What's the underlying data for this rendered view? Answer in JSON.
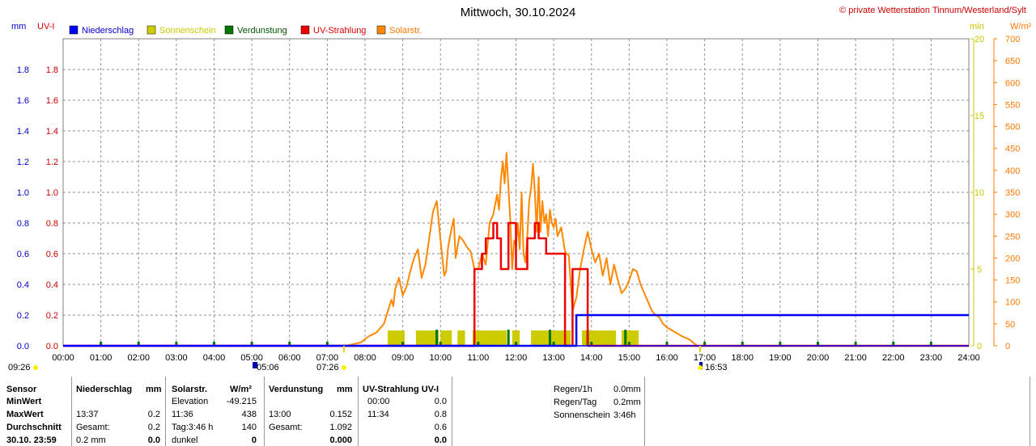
{
  "title": "Mittwoch, 30.10.2024",
  "copyright": "© private Wetterstation Tinnum/Westerland/Sylt",
  "units": {
    "mm": "mm",
    "uvi": "UV-I",
    "min": "min",
    "wm2": "W/m²"
  },
  "legend": [
    {
      "label": "Niederschlag",
      "color": "#0000ff",
      "text_color": "#0000cc"
    },
    {
      "label": "Sonnenschein",
      "color": "#cccc00",
      "text_color": "#c8c800"
    },
    {
      "label": "Verdunstung",
      "color": "#007700",
      "text_color": "#005500"
    },
    {
      "label": "UV-Strahlung",
      "color": "#ee0000",
      "text_color": "#dd0000"
    },
    {
      "label": "Solarstr.",
      "color": "#ff8800",
      "text_color": "#ff7700"
    }
  ],
  "sun": {
    "sunrise": "07:26",
    "sunset": "16:53",
    "dawn": "09:26",
    "dusk": "05:06"
  },
  "chart_data": {
    "type": "line",
    "x_range": [
      "00:00",
      "24:00"
    ],
    "x_ticks": [
      "00:00",
      "01:00",
      "02:00",
      "03:00",
      "04:00",
      "05:00",
      "06:00",
      "07:00",
      "08:00",
      "09:00",
      "10:00",
      "11:00",
      "12:00",
      "13:00",
      "14:00",
      "15:00",
      "16:00",
      "17:00",
      "18:00",
      "19:00",
      "20:00",
      "21:00",
      "22:00",
      "23:00",
      "24:00"
    ],
    "axes": {
      "mm": {
        "range": [
          0,
          2.0
        ],
        "ticks": [
          "0.0",
          "0.2",
          "0.4",
          "0.6",
          "0.8",
          "1.0",
          "1.2",
          "1.4",
          "1.6",
          "1.8"
        ],
        "color": "#0000cc"
      },
      "uvi": {
        "range": [
          0,
          2.0
        ],
        "ticks": [
          "0.0",
          "0.2",
          "0.4",
          "0.6",
          "0.8",
          "1.0",
          "1.2",
          "1.4",
          "1.6",
          "1.8"
        ],
        "color": "#cc0000"
      },
      "min": {
        "range": [
          0,
          20
        ],
        "ticks": [
          "0",
          "5",
          "10",
          "15",
          "20"
        ],
        "color": "#c8c800"
      },
      "wm2": {
        "range": [
          0,
          700
        ],
        "ticks": [
          "0",
          "50",
          "100",
          "150",
          "200",
          "250",
          "300",
          "350",
          "400",
          "450",
          "500",
          "550",
          "600",
          "650",
          "700"
        ],
        "color": "#ff7700"
      }
    },
    "series": [
      {
        "name": "Solarstr.",
        "axis": "wm2",
        "color": "#ff8800",
        "x": [
          7.5,
          7.9,
          8.1,
          8.3,
          8.5,
          8.6,
          8.7,
          8.75,
          8.8,
          8.9,
          9.0,
          9.1,
          9.2,
          9.3,
          9.4,
          9.5,
          9.6,
          9.7,
          9.8,
          9.9,
          10.0,
          10.1,
          10.15,
          10.2,
          10.3,
          10.35,
          10.4,
          10.5,
          10.6,
          10.7,
          10.8,
          10.9,
          11.0,
          11.1,
          11.2,
          11.3,
          11.4,
          11.5,
          11.55,
          11.6,
          11.65,
          11.7,
          11.75,
          11.8,
          11.85,
          11.9,
          11.95,
          12.0,
          12.05,
          12.1,
          12.15,
          12.2,
          12.25,
          12.3,
          12.35,
          12.4,
          12.45,
          12.5,
          12.55,
          12.6,
          12.65,
          12.7,
          12.75,
          12.8,
          12.85,
          12.9,
          12.95,
          13.0,
          13.05,
          13.1,
          13.15,
          13.2,
          13.3,
          13.4,
          13.5,
          13.6,
          13.7,
          13.8,
          13.9,
          14.0,
          14.1,
          14.2,
          14.3,
          14.4,
          14.5,
          14.6,
          14.7,
          14.8,
          14.9,
          15.0,
          15.1,
          15.2,
          15.3,
          15.4,
          15.5,
          15.6,
          15.7,
          15.8,
          15.9,
          16.0,
          16.2,
          16.4,
          16.6,
          16.8
        ],
        "values": [
          0,
          8,
          22,
          30,
          50,
          78,
          105,
          90,
          130,
          155,
          115,
          135,
          170,
          200,
          220,
          155,
          185,
          245,
          305,
          330,
          240,
          160,
          170,
          225,
          270,
          290,
          200,
          250,
          240,
          225,
          215,
          175,
          175,
          210,
          185,
          280,
          300,
          345,
          310,
          380,
          420,
          370,
          440,
          360,
          285,
          175,
          240,
          230,
          280,
          220,
          350,
          210,
          190,
          250,
          330,
          360,
          415,
          350,
          260,
          385,
          260,
          330,
          280,
          300,
          250,
          310,
          280,
          270,
          290,
          250,
          260,
          270,
          215,
          205,
          80,
          110,
          175,
          220,
          260,
          220,
          190,
          210,
          160,
          200,
          140,
          185,
          150,
          120,
          130,
          150,
          175,
          170,
          140,
          120,
          100,
          80,
          70,
          65,
          50,
          42,
          32,
          22,
          14,
          0
        ]
      },
      {
        "name": "UV-Strahlung",
        "axis": "uvi",
        "color": "#ee0000",
        "x": [
          0,
          10.9,
          10.9,
          11.1,
          11.1,
          11.2,
          11.2,
          11.4,
          11.4,
          11.5,
          11.5,
          11.6,
          11.6,
          11.8,
          11.8,
          12.0,
          12.0,
          12.3,
          12.3,
          12.5,
          12.5,
          12.6,
          12.6,
          12.8,
          12.8,
          13.0,
          13.0,
          13.3,
          13.3,
          13.5,
          13.5,
          13.9,
          13.9,
          14.0,
          14.0,
          24
        ],
        "values": [
          0,
          0,
          0.5,
          0.5,
          0.6,
          0.6,
          0.7,
          0.7,
          0.8,
          0.8,
          0.7,
          0.7,
          0.5,
          0.5,
          0.8,
          0.8,
          0.5,
          0.5,
          0.7,
          0.7,
          0.8,
          0.8,
          0.7,
          0.7,
          0.6,
          0.6,
          0.6,
          0.6,
          0.0,
          0.0,
          0.5,
          0.5,
          0.0,
          0.0,
          0.0,
          0.0
        ]
      },
      {
        "name": "Niederschlag",
        "axis": "mm",
        "color": "#0000ff",
        "x": [
          0,
          13.6,
          13.6,
          24
        ],
        "values": [
          0,
          0,
          0.2,
          0.2
        ]
      }
    ],
    "sunshine_bars": [
      {
        "start": 8.6,
        "end": 9.05,
        "minutes": 1
      },
      {
        "start": 9.35,
        "end": 9.95,
        "minutes": 1
      },
      {
        "start": 10.0,
        "end": 10.3,
        "minutes": 1
      },
      {
        "start": 10.45,
        "end": 10.65,
        "minutes": 1
      },
      {
        "start": 10.85,
        "end": 11.75,
        "minutes": 1
      },
      {
        "start": 11.9,
        "end": 12.1,
        "minutes": 1
      },
      {
        "start": 12.4,
        "end": 13.45,
        "minutes": 1
      },
      {
        "start": 13.75,
        "end": 14.65,
        "minutes": 1
      },
      {
        "start": 14.8,
        "end": 15.25,
        "minutes": 1
      }
    ],
    "evaporation_marks": [
      1,
      2,
      3,
      4,
      5,
      6,
      7,
      9,
      10,
      11,
      12,
      13,
      14,
      15,
      16,
      17,
      18,
      19,
      20,
      21,
      22,
      23,
      9.9,
      11.8,
      12.9,
      13.9,
      14.9
    ]
  },
  "stats": {
    "headers": {
      "sensor": "Sensor",
      "rain": "Niederschlag",
      "rain_unit": "mm",
      "solar": "Solarstr.",
      "solar_unit": "W/m²",
      "evap": "Verdunstung",
      "evap_unit": "mm",
      "uv": "UV-Strahlung UV-I"
    },
    "rows": [
      {
        "label": "MinWert",
        "rain_time": "",
        "rain_val": "",
        "solar_time": "Elevation",
        "solar_val": "-49.215",
        "evap_time": "",
        "evap_val": "",
        "uv_time": "00:00",
        "uv_val": "0.0"
      },
      {
        "label": "MaxWert",
        "rain_time": "13:37",
        "rain_val": "0.2",
        "solar_time": "11:36",
        "solar_val": "438",
        "evap_time": "13:00",
        "evap_val": "0.152",
        "uv_time": "11:34",
        "uv_val": "0.8"
      },
      {
        "label": "Durchschnitt",
        "rain_time": "Gesamt:",
        "rain_val": "0.2",
        "solar_time": "Tag:3:46 h",
        "solar_val": "140",
        "evap_time": "Gesamt:",
        "evap_val": "1.092",
        "uv_time": "",
        "uv_val": "0.6"
      },
      {
        "label": "30.10. 23:59",
        "rain_time": "0.2 mm",
        "rain_val": "0.0",
        "solar_time": "dunkel",
        "solar_val": "0",
        "evap_time": "",
        "evap_val": "0.000",
        "uv_time": "",
        "uv_val": "0.0"
      }
    ],
    "extra": [
      {
        "label": "Regen/1h",
        "value": "0.0mm"
      },
      {
        "label": "Regen/Tag",
        "value": "0.2mm"
      },
      {
        "label": "Sonnenschein",
        "value": "3:46h"
      }
    ]
  }
}
